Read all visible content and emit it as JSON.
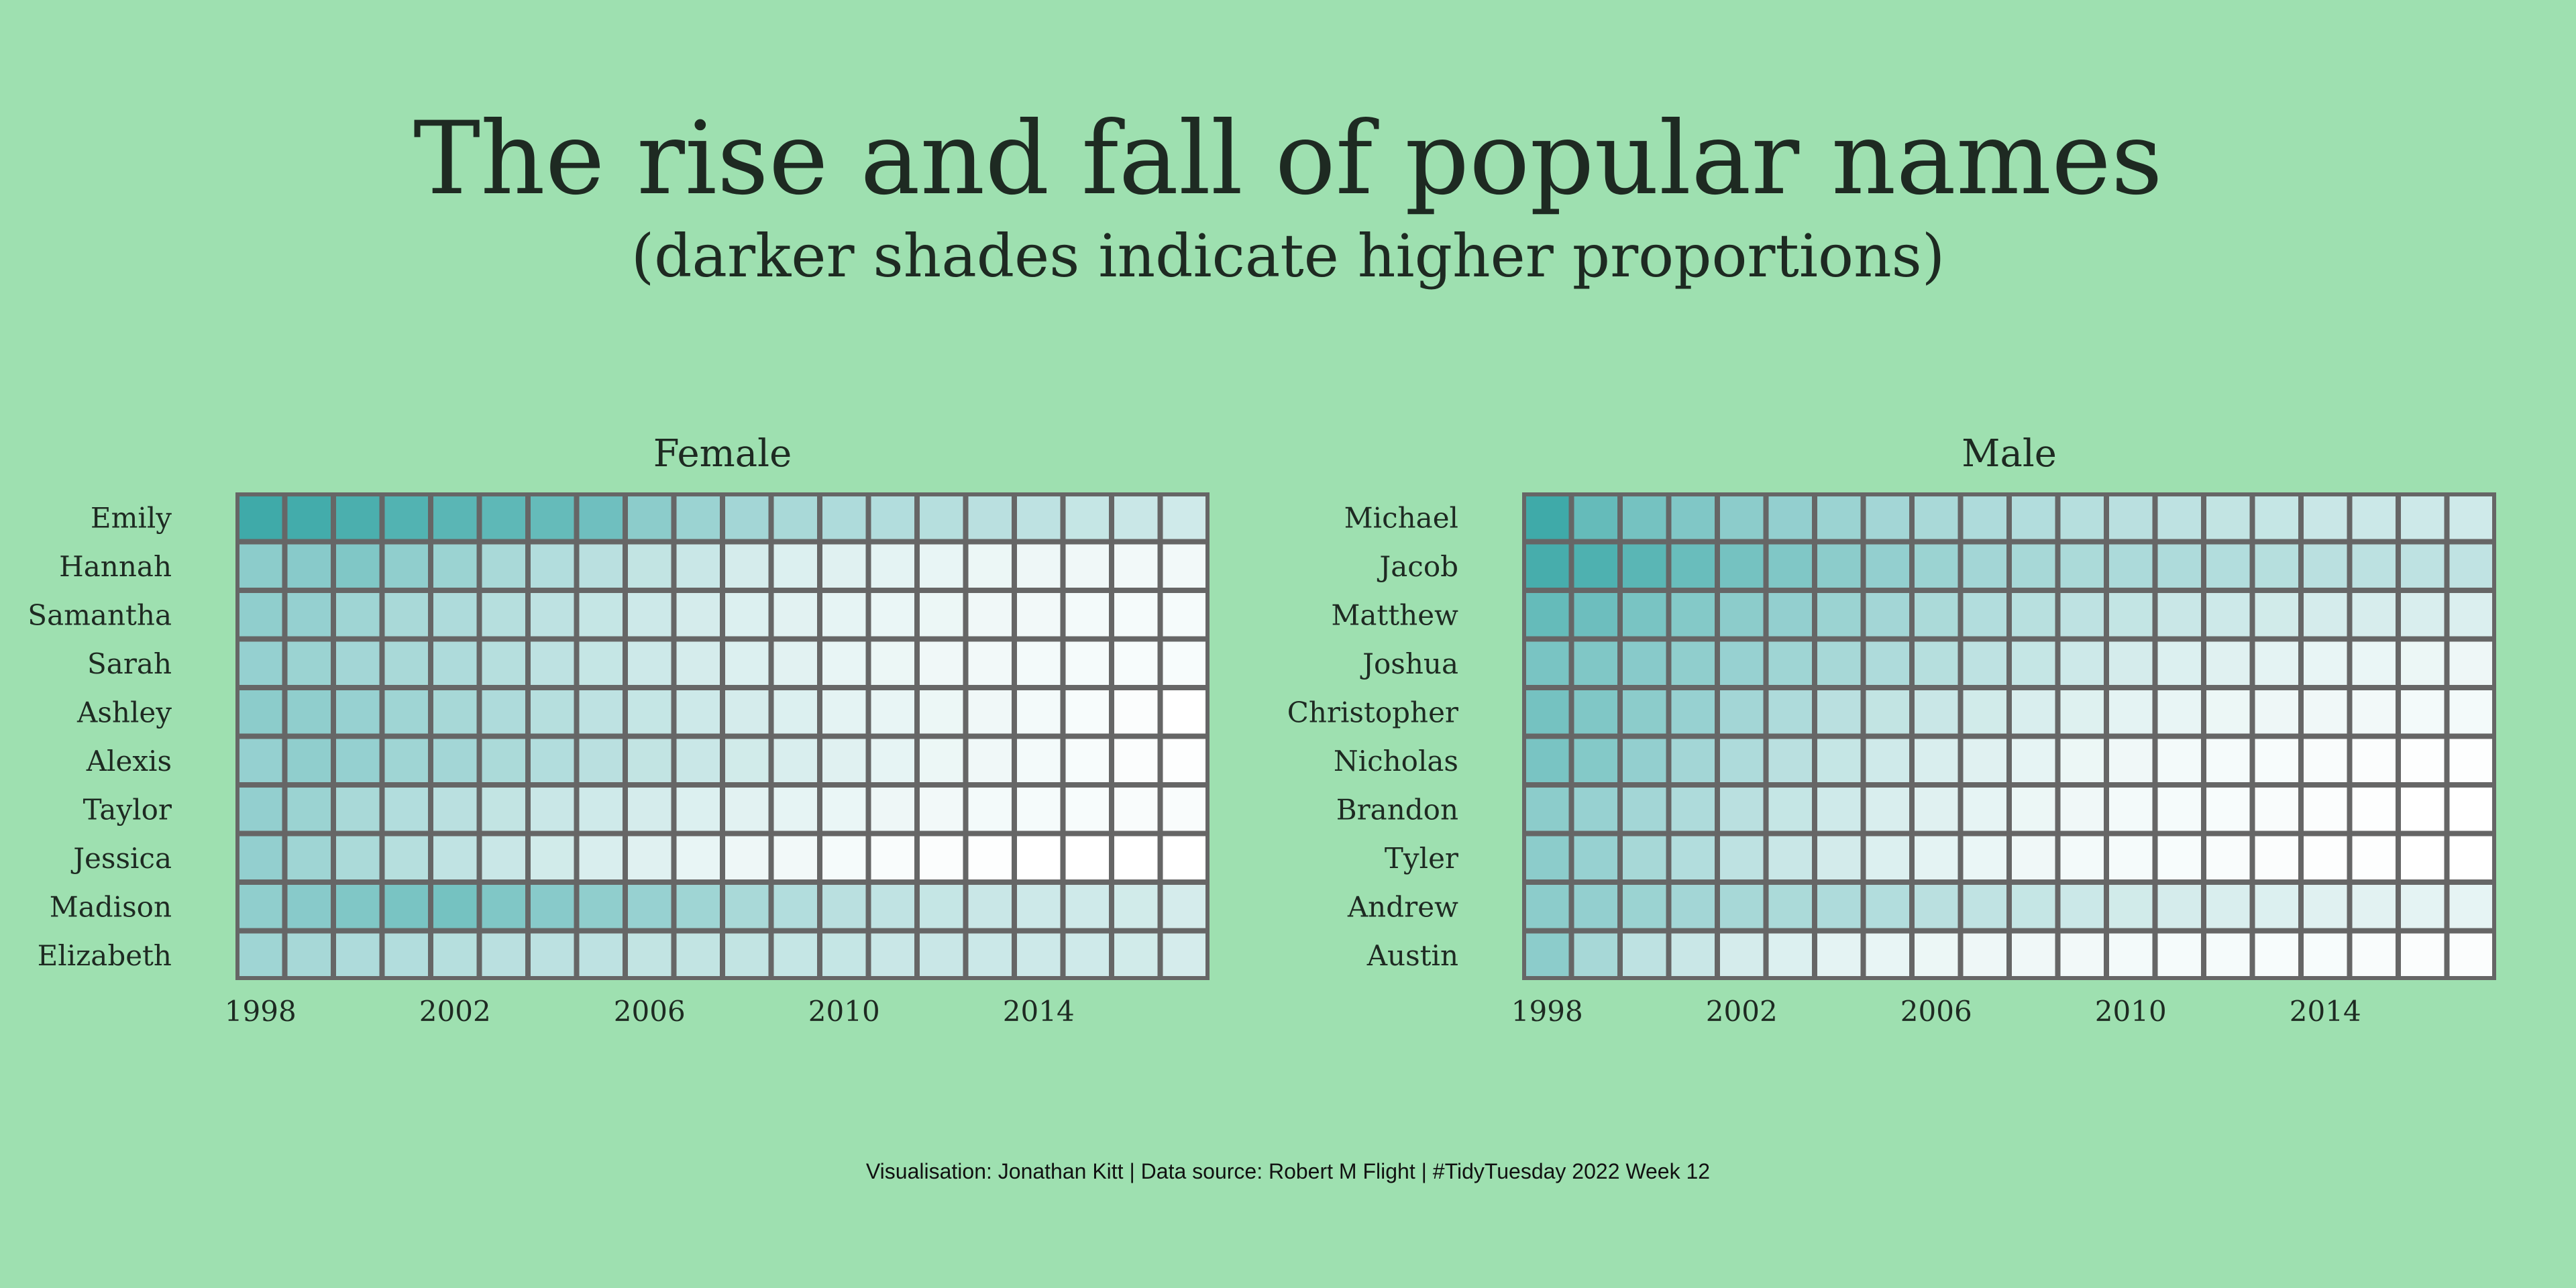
{
  "title": "The rise and fall of popular names",
  "subtitle": "(darker shades indicate higher proportions)",
  "caption": "Visualisation: Jonathan Kitt | Data source: Robert M Flight | #TidyTuesday 2022 Week 12",
  "colors": {
    "background": "#9ee0b0",
    "high": "#3faaa9",
    "low": "#ffffff",
    "grid": "#666666",
    "text": "#1e2a22"
  },
  "chart_data": [
    {
      "type": "heatmap",
      "title": "Female",
      "x": [
        1998,
        1999,
        2000,
        2001,
        2002,
        2003,
        2004,
        2005,
        2006,
        2007,
        2008,
        2009,
        2010,
        2011,
        2012,
        2013,
        2014,
        2015,
        2016,
        2017
      ],
      "x_ticks": [
        1998,
        2002,
        2006,
        2010,
        2014
      ],
      "rows": [
        "Emily",
        "Hannah",
        "Samantha",
        "Sarah",
        "Ashley",
        "Alexis",
        "Taylor",
        "Jessica",
        "Madison",
        "Elizabeth"
      ],
      "values": [
        [
          1.0,
          0.98,
          0.94,
          0.9,
          0.86,
          0.84,
          0.8,
          0.75,
          0.6,
          0.52,
          0.48,
          0.45,
          0.42,
          0.4,
          0.38,
          0.36,
          0.34,
          0.3,
          0.28,
          0.25
        ],
        [
          0.6,
          0.62,
          0.66,
          0.58,
          0.52,
          0.45,
          0.4,
          0.36,
          0.32,
          0.28,
          0.22,
          0.18,
          0.16,
          0.14,
          0.12,
          0.1,
          0.09,
          0.08,
          0.07,
          0.07
        ],
        [
          0.58,
          0.55,
          0.5,
          0.45,
          0.42,
          0.38,
          0.34,
          0.3,
          0.26,
          0.22,
          0.18,
          0.15,
          0.13,
          0.11,
          0.1,
          0.08,
          0.07,
          0.06,
          0.05,
          0.05
        ],
        [
          0.55,
          0.52,
          0.48,
          0.45,
          0.42,
          0.38,
          0.34,
          0.3,
          0.26,
          0.22,
          0.18,
          0.15,
          0.12,
          0.1,
          0.08,
          0.07,
          0.06,
          0.05,
          0.04,
          0.04
        ],
        [
          0.6,
          0.58,
          0.54,
          0.5,
          0.46,
          0.42,
          0.38,
          0.34,
          0.3,
          0.26,
          0.22,
          0.18,
          0.14,
          0.12,
          0.1,
          0.08,
          0.06,
          0.04,
          0.02,
          0.0
        ],
        [
          0.55,
          0.58,
          0.55,
          0.5,
          0.48,
          0.44,
          0.4,
          0.36,
          0.32,
          0.28,
          0.24,
          0.2,
          0.16,
          0.13,
          0.1,
          0.08,
          0.06,
          0.04,
          0.02,
          0.01
        ],
        [
          0.56,
          0.52,
          0.45,
          0.4,
          0.36,
          0.32,
          0.28,
          0.25,
          0.22,
          0.18,
          0.15,
          0.13,
          0.11,
          0.09,
          0.07,
          0.06,
          0.05,
          0.04,
          0.03,
          0.03
        ],
        [
          0.56,
          0.5,
          0.44,
          0.38,
          0.33,
          0.28,
          0.24,
          0.2,
          0.16,
          0.12,
          0.09,
          0.07,
          0.05,
          0.03,
          0.02,
          0.01,
          0.0,
          0.0,
          0.0,
          0.0
        ],
        [
          0.58,
          0.62,
          0.66,
          0.7,
          0.72,
          0.66,
          0.62,
          0.58,
          0.54,
          0.5,
          0.45,
          0.4,
          0.36,
          0.33,
          0.3,
          0.28,
          0.26,
          0.25,
          0.24,
          0.22
        ],
        [
          0.5,
          0.46,
          0.42,
          0.4,
          0.38,
          0.36,
          0.35,
          0.34,
          0.32,
          0.32,
          0.32,
          0.3,
          0.3,
          0.28,
          0.28,
          0.27,
          0.26,
          0.25,
          0.24,
          0.22
        ]
      ]
    },
    {
      "type": "heatmap",
      "title": "Male",
      "x": [
        1998,
        1999,
        2000,
        2001,
        2002,
        2003,
        2004,
        2005,
        2006,
        2007,
        2008,
        2009,
        2010,
        2011,
        2012,
        2013,
        2014,
        2015,
        2016,
        2017
      ],
      "x_ticks": [
        1998,
        2002,
        2006,
        2010,
        2014
      ],
      "rows": [
        "Michael",
        "Jacob",
        "Matthew",
        "Joshua",
        "Christopher",
        "Nicholas",
        "Brandon",
        "Tyler",
        "Andrew",
        "Austin"
      ],
      "values": [
        [
          1.0,
          0.8,
          0.72,
          0.66,
          0.6,
          0.56,
          0.52,
          0.48,
          0.45,
          0.42,
          0.4,
          0.38,
          0.36,
          0.34,
          0.32,
          0.3,
          0.28,
          0.27,
          0.26,
          0.25
        ],
        [
          0.96,
          0.92,
          0.86,
          0.78,
          0.72,
          0.66,
          0.6,
          0.56,
          0.52,
          0.48,
          0.46,
          0.44,
          0.43,
          0.42,
          0.4,
          0.38,
          0.36,
          0.35,
          0.34,
          0.33
        ],
        [
          0.8,
          0.76,
          0.7,
          0.64,
          0.6,
          0.56,
          0.52,
          0.48,
          0.44,
          0.4,
          0.37,
          0.34,
          0.31,
          0.28,
          0.26,
          0.24,
          0.22,
          0.21,
          0.2,
          0.19
        ],
        [
          0.7,
          0.66,
          0.62,
          0.58,
          0.54,
          0.5,
          0.46,
          0.42,
          0.38,
          0.34,
          0.3,
          0.26,
          0.22,
          0.18,
          0.16,
          0.14,
          0.12,
          0.11,
          0.1,
          0.09
        ],
        [
          0.72,
          0.66,
          0.6,
          0.54,
          0.48,
          0.42,
          0.36,
          0.32,
          0.28,
          0.24,
          0.2,
          0.17,
          0.14,
          0.12,
          0.1,
          0.09,
          0.08,
          0.07,
          0.06,
          0.06
        ],
        [
          0.7,
          0.64,
          0.56,
          0.48,
          0.42,
          0.36,
          0.3,
          0.25,
          0.2,
          0.16,
          0.13,
          0.1,
          0.08,
          0.06,
          0.05,
          0.04,
          0.03,
          0.02,
          0.01,
          0.01
        ],
        [
          0.6,
          0.54,
          0.48,
          0.42,
          0.36,
          0.3,
          0.25,
          0.2,
          0.16,
          0.13,
          0.1,
          0.08,
          0.06,
          0.05,
          0.04,
          0.03,
          0.02,
          0.01,
          0.0,
          0.0
        ],
        [
          0.6,
          0.54,
          0.46,
          0.4,
          0.34,
          0.28,
          0.23,
          0.18,
          0.14,
          0.11,
          0.08,
          0.06,
          0.05,
          0.04,
          0.03,
          0.02,
          0.01,
          0.01,
          0.0,
          0.0
        ],
        [
          0.6,
          0.56,
          0.52,
          0.48,
          0.46,
          0.44,
          0.42,
          0.4,
          0.36,
          0.33,
          0.3,
          0.27,
          0.24,
          0.22,
          0.2,
          0.18,
          0.16,
          0.15,
          0.14,
          0.13
        ],
        [
          0.6,
          0.46,
          0.34,
          0.28,
          0.22,
          0.18,
          0.14,
          0.12,
          0.1,
          0.09,
          0.08,
          0.07,
          0.06,
          0.05,
          0.05,
          0.04,
          0.04,
          0.03,
          0.02,
          0.02
        ]
      ]
    }
  ]
}
